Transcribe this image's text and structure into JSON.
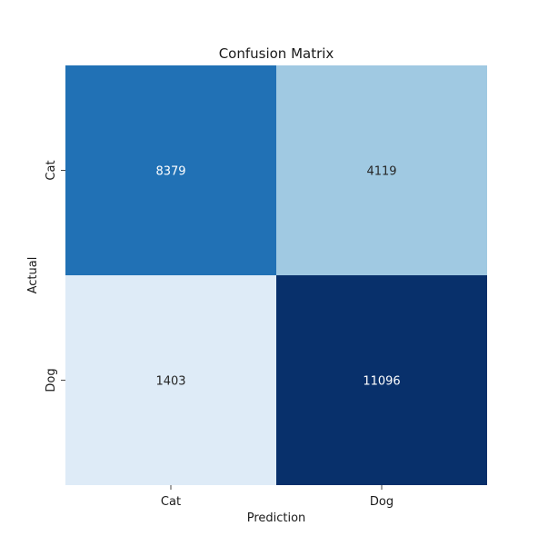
{
  "chart_data": {
    "type": "heatmap",
    "title": "Confusion Matrix",
    "xlabel": "Prediction",
    "ylabel": "Actual",
    "x_categories": [
      "Cat",
      "Dog"
    ],
    "y_categories": [
      "Cat",
      "Dog"
    ],
    "values": [
      [
        8379,
        4119
      ],
      [
        1403,
        11096
      ]
    ],
    "colormap": "Blues",
    "colorbar": false
  },
  "colors": {
    "cell_0_0": "#2171b5",
    "cell_0_1": "#a0c9e2",
    "cell_1_0": "#deebf7",
    "cell_1_1": "#08306b",
    "text_on_dark": "#ffffff",
    "text_on_light": "#262626"
  }
}
